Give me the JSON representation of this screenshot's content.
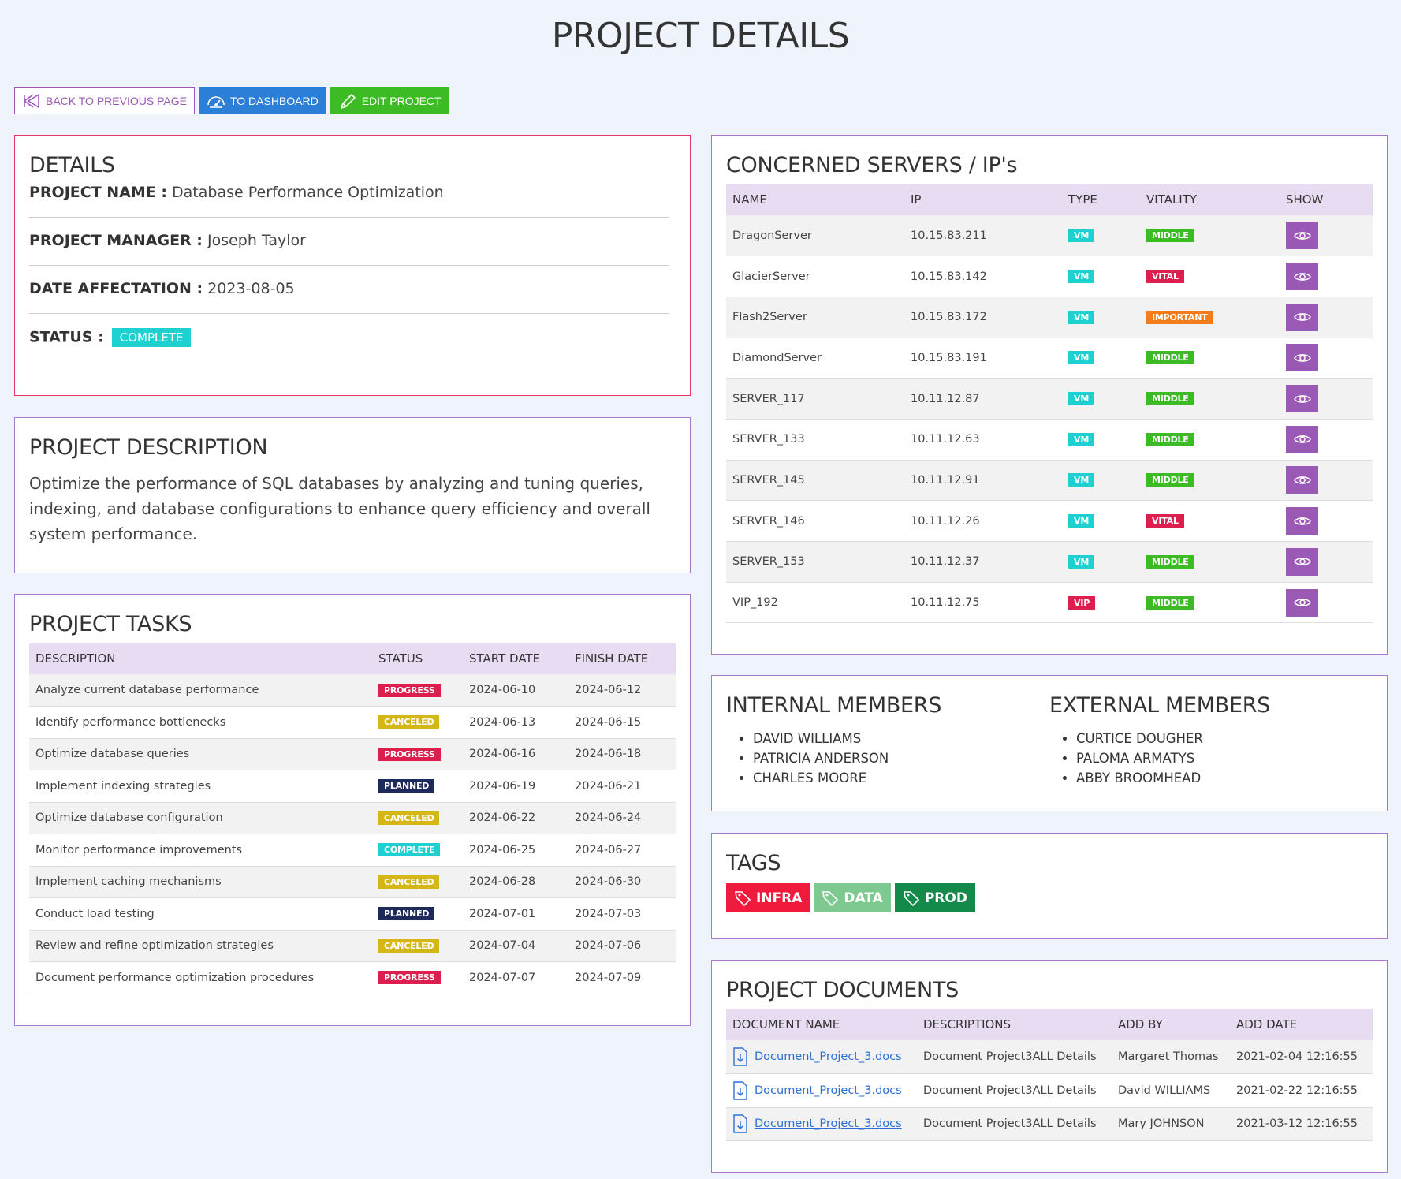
{
  "page": {
    "title": "PROJECT DETAILS"
  },
  "toolbar": {
    "back_label": "BACK TO PREVIOUS PAGE",
    "dashboard_label": "TO DASHBOARD",
    "edit_label": "EDIT PROJECT"
  },
  "details": {
    "title": "DETAILS",
    "project_name_label": "PROJECT NAME :",
    "project_name": "Database Performance Optimization",
    "project_manager_label": "PROJECT MANAGER :",
    "project_manager": "Joseph Taylor",
    "date_label": "DATE AFFECTATION :",
    "date": "2023-08-05",
    "status_label": "STATUS :",
    "status": "COMPLETE"
  },
  "description": {
    "title": "PROJECT DESCRIPTION",
    "text": "Optimize the performance of SQL databases by analyzing and tuning queries, indexing, and database configurations to enhance query efficiency and overall system performance."
  },
  "tasks": {
    "title": "PROJECT TASKS",
    "columns": [
      "DESCRIPTION",
      "STATUS",
      "START DATE",
      "FINISH DATE"
    ],
    "rows": [
      {
        "description": "Analyze current database performance",
        "status": "PROGRESS",
        "start": "2024-06-10",
        "finish": "2024-06-12"
      },
      {
        "description": "Identify performance bottlenecks",
        "status": "CANCELED",
        "start": "2024-06-13",
        "finish": "2024-06-15"
      },
      {
        "description": "Optimize database queries",
        "status": "PROGRESS",
        "start": "2024-06-16",
        "finish": "2024-06-18"
      },
      {
        "description": "Implement indexing strategies",
        "status": "PLANNED",
        "start": "2024-06-19",
        "finish": "2024-06-21"
      },
      {
        "description": "Optimize database configuration",
        "status": "CANCELED",
        "start": "2024-06-22",
        "finish": "2024-06-24"
      },
      {
        "description": "Monitor performance improvements",
        "status": "COMPLETE",
        "start": "2024-06-25",
        "finish": "2024-06-27"
      },
      {
        "description": "Implement caching mechanisms",
        "status": "CANCELED",
        "start": "2024-06-28",
        "finish": "2024-06-30"
      },
      {
        "description": "Conduct load testing",
        "status": "PLANNED",
        "start": "2024-07-01",
        "finish": "2024-07-03"
      },
      {
        "description": "Review and refine optimization strategies",
        "status": "CANCELED",
        "start": "2024-07-04",
        "finish": "2024-07-06"
      },
      {
        "description": "Document performance optimization procedures",
        "status": "PROGRESS",
        "start": "2024-07-07",
        "finish": "2024-07-09"
      }
    ]
  },
  "servers": {
    "title": "CONCERNED SERVERS / IP's",
    "columns": [
      "NAME",
      "IP",
      "TYPE",
      "VITALITY",
      "SHOW"
    ],
    "rows": [
      {
        "name": "DragonServer",
        "ip": "10.15.83.211",
        "type": "VM",
        "vitality": "MIDDLE"
      },
      {
        "name": "GlacierServer",
        "ip": "10.15.83.142",
        "type": "VM",
        "vitality": "VITAL"
      },
      {
        "name": "Flash2Server",
        "ip": "10.15.83.172",
        "type": "VM",
        "vitality": "IMPORTANT"
      },
      {
        "name": "DiamondServer",
        "ip": "10.15.83.191",
        "type": "VM",
        "vitality": "MIDDLE"
      },
      {
        "name": "SERVER_117",
        "ip": "10.11.12.87",
        "type": "VM",
        "vitality": "MIDDLE"
      },
      {
        "name": "SERVER_133",
        "ip": "10.11.12.63",
        "type": "VM",
        "vitality": "MIDDLE"
      },
      {
        "name": "SERVER_145",
        "ip": "10.11.12.91",
        "type": "VM",
        "vitality": "MIDDLE"
      },
      {
        "name": "SERVER_146",
        "ip": "10.11.12.26",
        "type": "VM",
        "vitality": "VITAL"
      },
      {
        "name": "SERVER_153",
        "ip": "10.11.12.37",
        "type": "VM",
        "vitality": "MIDDLE"
      },
      {
        "name": "VIP_192",
        "ip": "10.11.12.75",
        "type": "VIP",
        "vitality": "MIDDLE"
      }
    ]
  },
  "members": {
    "internal_title": "INTERNAL MEMBERS",
    "internal": [
      "DAVID WILLIAMS",
      "PATRICIA ANDERSON",
      "CHARLES MOORE"
    ],
    "external_title": "EXTERNAL MEMBERS",
    "external": [
      "CURTICE DOUGHER",
      "PALOMA ARMATYS",
      "ABBY BROOMHEAD"
    ]
  },
  "tags": {
    "title": "TAGS",
    "items": [
      {
        "label": "INFRA",
        "color": "#f01a3c"
      },
      {
        "label": "DATA",
        "color": "#7dc98f"
      },
      {
        "label": "PROD",
        "color": "#148a4a"
      }
    ]
  },
  "documents": {
    "title": "PROJECT DOCUMENTS",
    "columns": [
      "DOCUMENT NAME",
      "DESCRIPTIONS",
      "ADD BY",
      "ADD DATE"
    ],
    "rows": [
      {
        "name": "Document_Project_3.docs",
        "description": "Document Project3ALL Details",
        "added_by": "Margaret Thomas",
        "date": "2021-02-04 12:16:55"
      },
      {
        "name": "Document_Project_3.docs",
        "description": "Document Project3ALL Details",
        "added_by": "David WILLIAMS",
        "date": "2021-02-22 12:16:55"
      },
      {
        "name": "Document_Project_3.docs",
        "description": "Document Project3ALL Details",
        "added_by": "Mary JOHNSON",
        "date": "2021-03-12 12:16:55"
      }
    ]
  },
  "colors": {
    "accent_purple": "#9b59b6",
    "details_border": "#e2385f",
    "header_bg": "#e8dcf2"
  }
}
